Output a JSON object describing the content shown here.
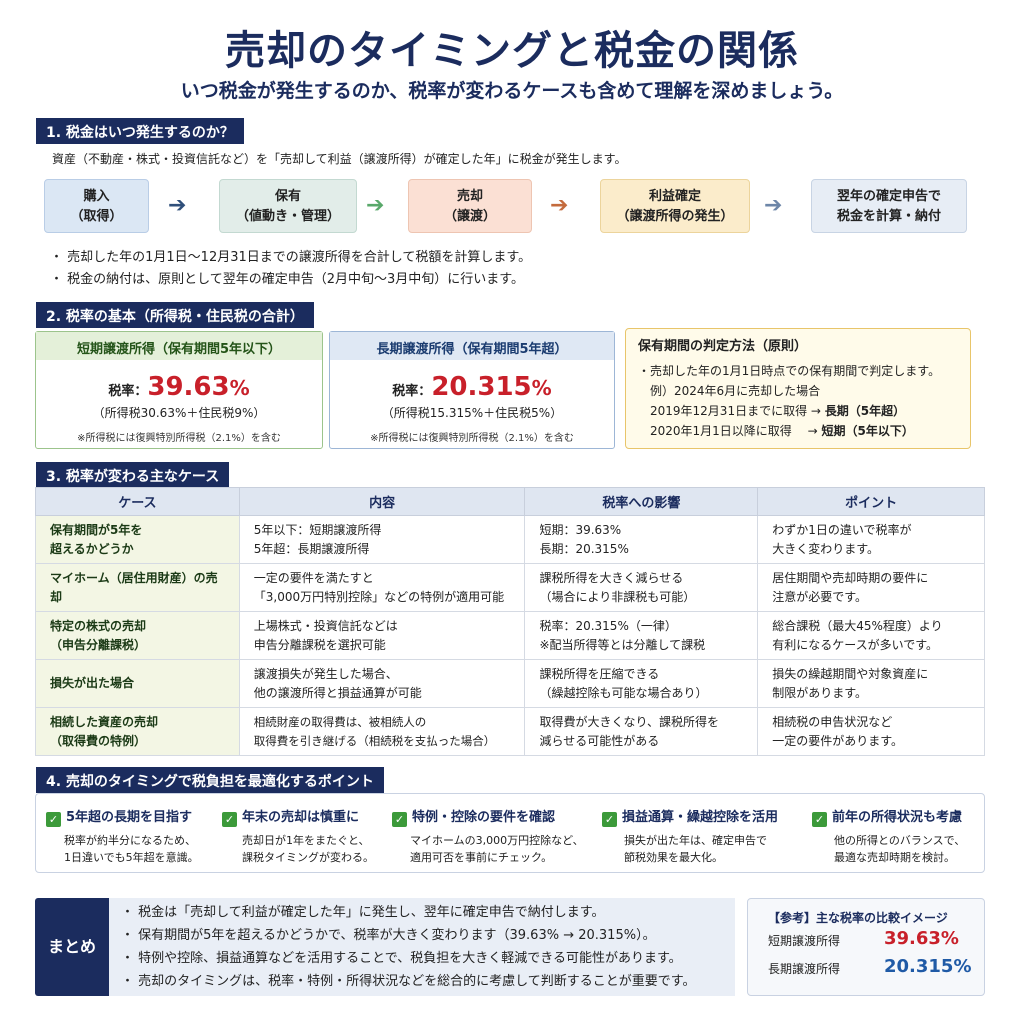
{
  "header": {
    "title": "売却のタイミングと税金の関係",
    "subtitle": "いつ税金が発生するのか、税率が変わるケースも含めて理解を深めましょう。"
  },
  "section1": {
    "heading": "1. 税金はいつ発生するのか？",
    "intro": "資産（不動産・株式・投資信託など）を「売却して利益（譲渡所得）が確定した年」に税金が発生します。",
    "flow": [
      {
        "line1": "購入",
        "line2": "（取得）"
      },
      {
        "line1": "保有",
        "line2": "（値動き・管理）"
      },
      {
        "line1": "売却",
        "line2": "（譲渡）"
      },
      {
        "line1": "利益確定",
        "line2": "（譲渡所得の発生）"
      },
      {
        "line1": "翌年の確定申告で",
        "line2": "税金を計算・納付"
      }
    ],
    "bullets": [
      "売却した年の1月1日〜12月31日までの譲渡所得を合計して税額を計算します。",
      "税金の納付は、原則として翌年の確定申告（2月中旬〜3月中旬）に行います。"
    ]
  },
  "section2": {
    "heading": "2. 税率の基本（所得税・住民税の合計）",
    "short": {
      "title": "短期譲渡所得（保有期間5年以下）",
      "rate_label": "税率：",
      "rate_value": "39.63",
      "rate_unit": "%",
      "breakdown": "（所得税30.63%＋住民税9%）",
      "note": "※所得税には復興特別所得税（2.1%）を含む"
    },
    "long": {
      "title": "長期譲渡所得（保有期間5年超）",
      "rate_label": "税率：",
      "rate_value": "20.315",
      "rate_unit": "%",
      "breakdown": "（所得税15.315%＋住民税5%）",
      "note": "※所得税には復興特別所得税（2.1%）を含む"
    },
    "judge": {
      "title": "保有期間の判定方法（原則）",
      "line1": "・売却した年の1月1日時点での保有期間で判定します。",
      "line2": "例）2024年6月に売却した場合",
      "line3a": "2019年12月31日までに取得 → ",
      "line3b": "長期（5年超）",
      "line4a": "2020年1月1日以降に取得　 → ",
      "line4b": "短期（5年以下）"
    }
  },
  "section3": {
    "heading": "3. 税率が変わる主なケース",
    "columns": [
      "ケース",
      "内容",
      "税率への影響",
      "ポイント"
    ],
    "rows": [
      {
        "case": [
          "保有期間が5年を",
          "超えるかどうか"
        ],
        "content": [
          "5年以下：短期譲渡所得",
          "5年超：長期譲渡所得"
        ],
        "impact": [
          "短期：39.63%",
          "長期：20.315%"
        ],
        "point": [
          "わずか1日の違いで税率が",
          "大きく変わります。"
        ]
      },
      {
        "case": [
          "マイホーム（居住用財産）の売却",
          ""
        ],
        "content": [
          "一定の要件を満たすと",
          "「3,000万円特別控除」などの特例が適用可能"
        ],
        "impact": [
          "課税所得を大きく減らせる",
          "（場合により非課税も可能）"
        ],
        "point": [
          "居住期間や売却時期の要件に",
          "注意が必要です。"
        ]
      },
      {
        "case": [
          "特定の株式の売却",
          "（申告分離課税）"
        ],
        "content": [
          "上場株式・投資信託などは",
          "申告分離課税を選択可能"
        ],
        "impact": [
          "税率：20.315%（一律）",
          "※配当所得等とは分離して課税"
        ],
        "point": [
          "総合課税（最大45%程度）より",
          "有利になるケースが多いです。"
        ]
      },
      {
        "case": [
          "損失が出た場合",
          ""
        ],
        "content": [
          "譲渡損失が発生した場合、",
          "他の譲渡所得と損益通算が可能"
        ],
        "impact": [
          "課税所得を圧縮できる",
          "（繰越控除も可能な場合あり）"
        ],
        "point": [
          "損失の繰越期間や対象資産に",
          "制限があります。"
        ]
      },
      {
        "case": [
          "相続した資産の売却",
          "（取得費の特例）"
        ],
        "content": [
          "相続財産の取得費は、被相続人の",
          "取得費を引き継げる（相続税を支払った場合）"
        ],
        "impact": [
          "取得費が大きくなり、課税所得を",
          "減らせる可能性がある"
        ],
        "point": [
          "相続税の申告状況など",
          "一定の要件があります。"
        ]
      }
    ]
  },
  "section4": {
    "heading": "4. 売却のタイミングで税負担を最適化するポイント",
    "tips": [
      {
        "title": "5年超の長期を目指す",
        "desc1": "税率が約半分になるため、",
        "desc2": "1日違いでも5年超を意識。"
      },
      {
        "title": "年末の売却は慎重に",
        "desc1": "売却日が1年をまたぐと、",
        "desc2": "課税タイミングが変わる。"
      },
      {
        "title": "特例・控除の要件を確認",
        "desc1": "マイホームの3,000万円控除など、",
        "desc2": "適用可否を事前にチェック。"
      },
      {
        "title": "損益通算・繰越控除を活用",
        "desc1": "損失が出た年は、確定申告で",
        "desc2": "節税効果を最大化。"
      },
      {
        "title": "前年の所得状況も考慮",
        "desc1": "他の所得とのバランスで、",
        "desc2": "最適な売却時期を検討。"
      }
    ]
  },
  "summary": {
    "label": "まとめ",
    "bullets": [
      "税金は「売却して利益が確定した年」に発生し、翌年に確定申告で納付します。",
      "保有期間が5年を超えるかどうかで、税率が大きく変わります（39.63% → 20.315%）。",
      "特例や控除、損益通算などを活用することで、税負担を大きく軽減できる可能性があります。",
      "売却のタイミングは、税率・特例・所得状況などを総合的に考慮して判断することが重要です。"
    ]
  },
  "reference": {
    "title": "【参考】主な税率の比較イメージ",
    "rows": [
      {
        "label": "短期譲渡所得",
        "value": "39.63%"
      },
      {
        "label": "長期譲渡所得",
        "value": "20.315%"
      }
    ]
  },
  "colors": {
    "navy": "#1b2c5e",
    "red": "#c8202a",
    "blue": "#1f5aa6",
    "green": "#3c9a3a"
  }
}
